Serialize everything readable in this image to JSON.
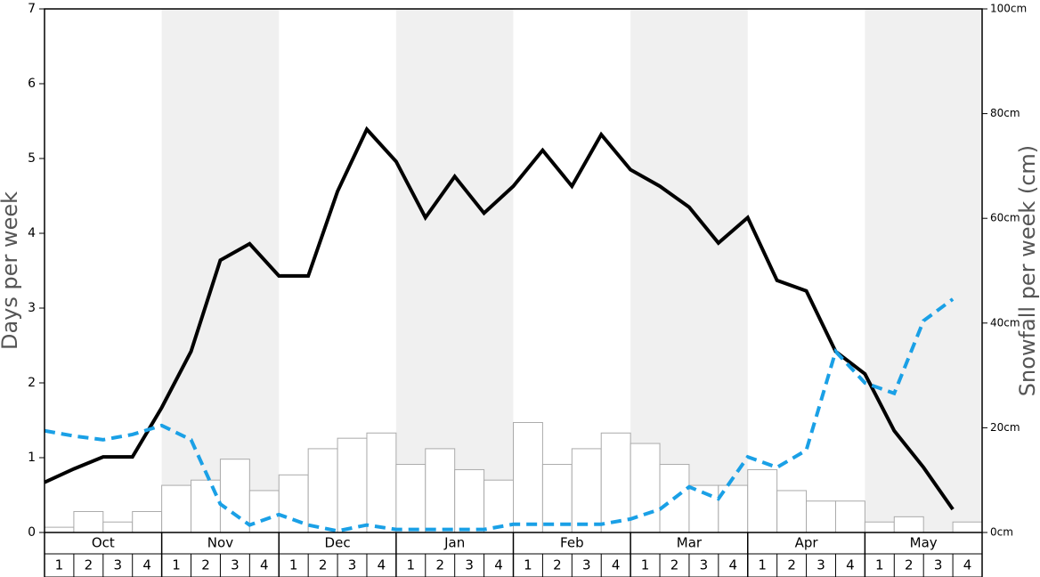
{
  "chart_data": {
    "type": "bar-line",
    "y_label": "Days per week",
    "y2_label": "Snowfall per week (cm)",
    "months": [
      "Oct",
      "Nov",
      "Dec",
      "Jan",
      "Feb",
      "Mar",
      "Apr",
      "May"
    ],
    "weeks": [
      "1",
      "2",
      "3",
      "4"
    ],
    "shaded_months": [
      "Nov",
      "Jan",
      "Mar",
      "May"
    ],
    "ylim": [
      0,
      7
    ],
    "yticks": [
      0,
      1,
      2,
      3,
      4,
      5,
      6,
      7
    ],
    "y2lim": [
      0,
      100
    ],
    "y2ticks": [
      {
        "value": 0,
        "label": "0cm"
      },
      {
        "value": 20,
        "label": "20cm"
      },
      {
        "value": 40,
        "label": "40cm"
      },
      {
        "value": 60,
        "label": "60cm"
      },
      {
        "value": 80,
        "label": "80cm"
      },
      {
        "value": 100,
        "label": "100cm"
      }
    ],
    "series": [
      {
        "kind": "bar",
        "axis": "y2",
        "color": "#ffffff",
        "values": [
          1,
          4,
          2,
          4,
          9,
          10,
          14,
          8,
          11,
          16,
          18,
          19,
          13,
          16,
          12,
          10,
          21,
          13,
          16,
          19,
          17,
          13,
          9,
          9,
          12,
          8,
          6,
          6,
          2,
          3,
          0,
          2
        ]
      },
      {
        "kind": "line",
        "color": "#000000",
        "values": [
          0.67,
          0.85,
          1.01,
          1.01,
          1.67,
          2.42,
          3.64,
          3.86,
          3.43,
          3.43,
          4.56,
          5.39,
          4.96,
          4.21,
          4.76,
          4.27,
          4.63,
          5.11,
          4.63,
          5.32,
          4.85,
          4.63,
          4.35,
          3.87,
          4.21,
          3.37,
          3.23,
          2.42,
          2.12,
          1.36,
          0.87,
          0.31
        ]
      },
      {
        "kind": "dashed",
        "color": "#1aa0e6",
        "values": [
          1.36,
          1.29,
          1.24,
          1.31,
          1.43,
          1.24,
          0.38,
          0.1,
          0.24,
          0.1,
          0.02,
          0.1,
          0.04,
          0.04,
          0.04,
          0.04,
          0.11,
          0.11,
          0.11,
          0.11,
          0.18,
          0.31,
          0.61,
          0.45,
          1.01,
          0.87,
          1.1,
          2.42,
          2.0,
          1.86,
          2.83,
          3.12
        ]
      }
    ]
  }
}
